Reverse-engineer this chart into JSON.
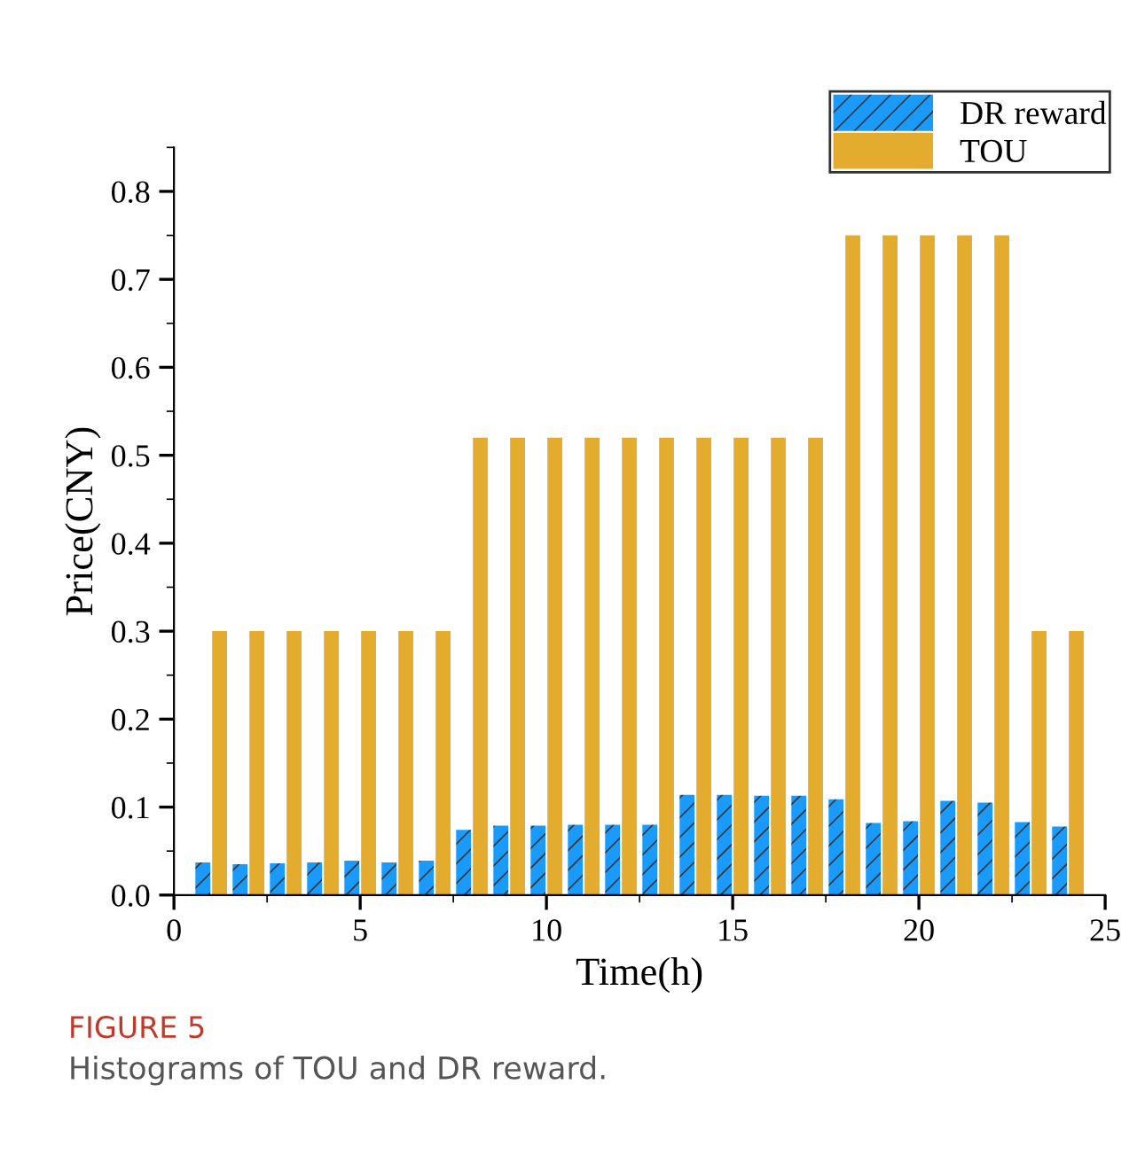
{
  "chart_data": {
    "type": "bar",
    "xlabel": "Time(h)",
    "ylabel": "Price(CNY)",
    "x": [
      1,
      2,
      3,
      4,
      5,
      6,
      7,
      8,
      9,
      10,
      11,
      12,
      13,
      14,
      15,
      16,
      17,
      18,
      19,
      20,
      21,
      22,
      23,
      24
    ],
    "series": [
      {
        "name": "DR reward",
        "color": "#1a9bfc",
        "values": [
          0.037,
          0.035,
          0.036,
          0.037,
          0.039,
          0.037,
          0.039,
          0.074,
          0.079,
          0.079,
          0.08,
          0.08,
          0.08,
          0.114,
          0.114,
          0.113,
          0.113,
          0.109,
          0.082,
          0.084,
          0.107,
          0.105,
          0.083,
          0.078
        ]
      },
      {
        "name": "TOU",
        "color": "#e3ac2f",
        "values": [
          0.3,
          0.3,
          0.3,
          0.3,
          0.3,
          0.3,
          0.3,
          0.52,
          0.52,
          0.52,
          0.52,
          0.52,
          0.52,
          0.52,
          0.52,
          0.52,
          0.52,
          0.75,
          0.75,
          0.75,
          0.75,
          0.75,
          0.3,
          0.3
        ]
      }
    ],
    "xlim": [
      0,
      25
    ],
    "xticks": [
      0,
      5,
      10,
      15,
      20,
      25
    ],
    "ylim": [
      0,
      0.85
    ],
    "yticks": [
      {
        "value": 0,
        "label": "0.0"
      },
      {
        "value": 0.1,
        "label": "0.1"
      },
      {
        "value": 0.2,
        "label": "0.2"
      },
      {
        "value": 0.3,
        "label": "0.3"
      },
      {
        "value": 0.4,
        "label": "0.4"
      },
      {
        "value": 0.5,
        "label": "0.5"
      },
      {
        "value": 0.6,
        "label": "0.6"
      },
      {
        "value": 0.7,
        "label": "0.7"
      },
      {
        "value": 0.8,
        "label": "0.8"
      }
    ],
    "grid": false,
    "legend": "top right",
    "annotations": [
      "FIGURE 5",
      "Histograms of TOU and DR reward."
    ]
  }
}
